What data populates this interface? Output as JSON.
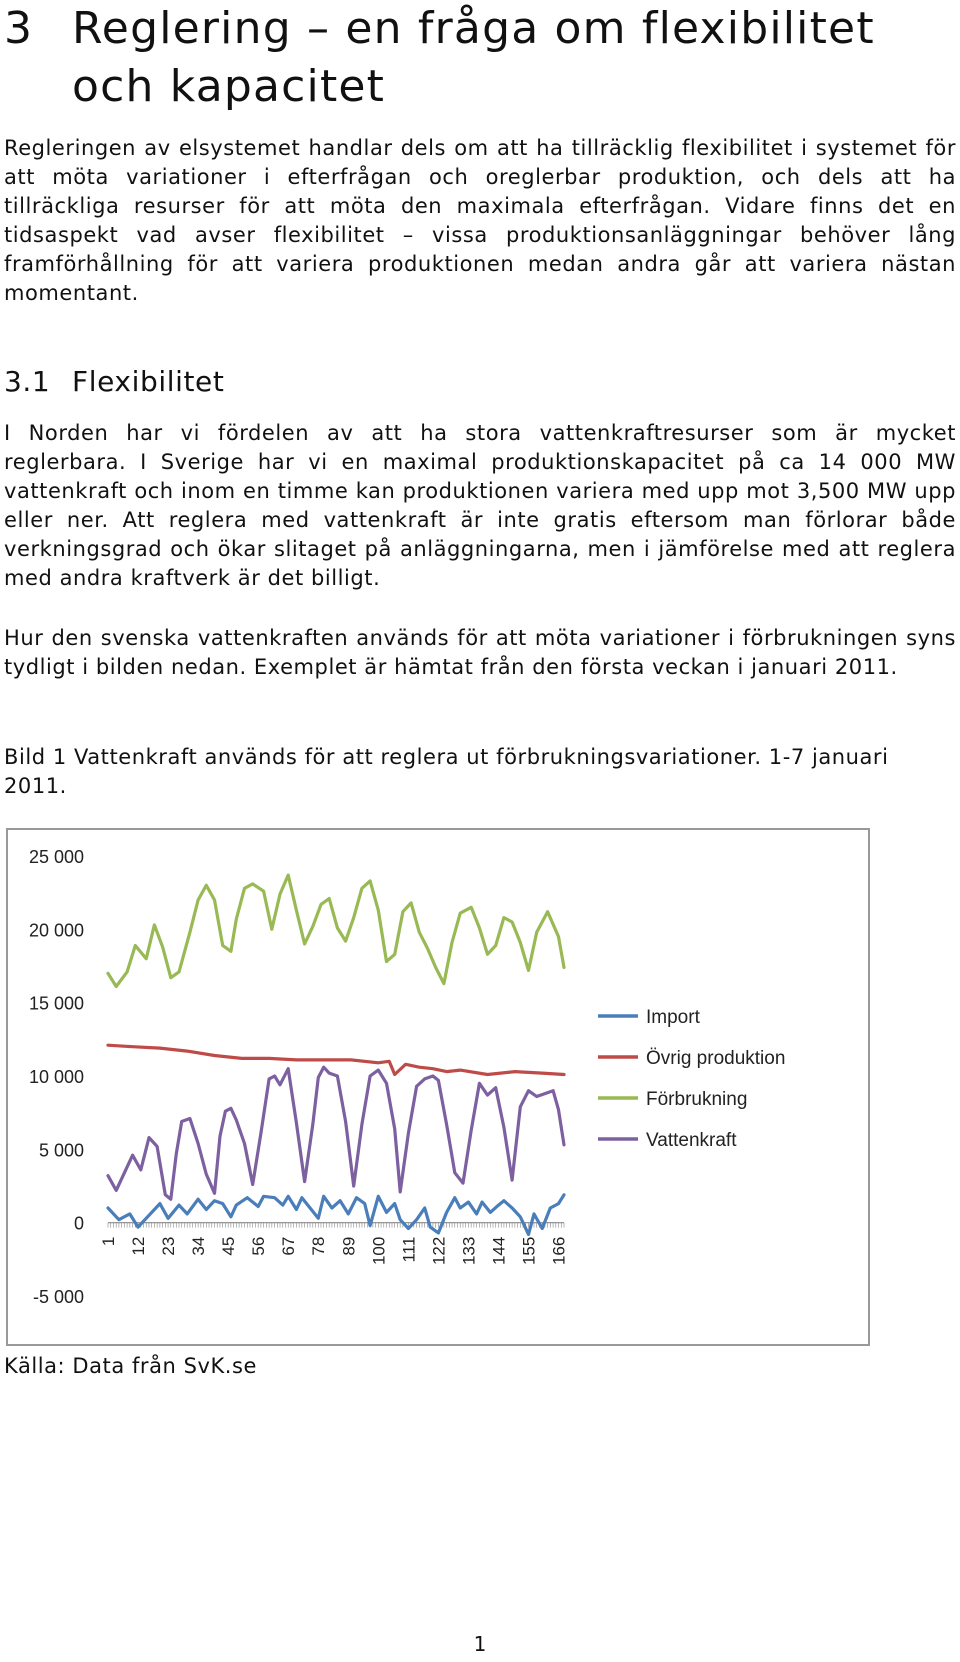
{
  "heading": {
    "number": "3",
    "title_line1": "Reglering – en fråga om flexibilitet",
    "title_line2": "och kapacitet"
  },
  "intro_paragraph": "Regleringen av elsystemet handlar dels om att ha tillräcklig flexibilitet i systemet för att möta variationer i efterfrågan och oreglerbar produktion, och dels att ha tillräckliga resurser för att möta den maximala efterfrågan. Vidare finns det en tidsaspekt vad avser flexibilitet – vissa produktionsanläggningar behöver lång framförhållning för att variera produktionen medan andra går att variera nästan momentant.",
  "section": {
    "number": "3.1",
    "title": "Flexibilitet"
  },
  "paragraph_1": "I Norden har vi fördelen av att ha stora vattenkraftresurser som är mycket reglerbara. I Sverige har vi en maximal produktionskapacitet på ca 14 000 MW vattenkraft och inom en timme kan produktionen variera med upp mot 3,500 MW upp eller ner. Att reglera med vattenkraft är inte gratis eftersom man förlorar både verkningsgrad och ökar slitaget på anläggningarna, men i jämförelse med att reglera med andra kraftverk är det billigt.",
  "paragraph_2": "Hur den svenska vattenkraften används för att möta variationer i förbrukningen syns tydligt i bilden nedan. Exemplet är hämtat från den första veckan i januari 2011.",
  "figure_caption": "Bild 1 Vattenkraft används för att reglera ut förbrukningsvariationer. 1-7 januari 2011.",
  "source": "Källa: Data från SvK.se",
  "page_number": "1",
  "chart_data": {
    "type": "line",
    "title": "",
    "xlabel": "",
    "ylabel": "",
    "ylim": [
      -5000,
      25000
    ],
    "yticks": [
      25000,
      20000,
      15000,
      10000,
      5000,
      0,
      -5000
    ],
    "ytick_labels": [
      "25 000",
      "20 000",
      "15 000",
      "10 000",
      "5 000",
      "0",
      "-5 000"
    ],
    "xlim": [
      1,
      168
    ],
    "xticks": [
      1,
      12,
      23,
      34,
      45,
      56,
      67,
      78,
      89,
      100,
      111,
      122,
      133,
      144,
      155,
      166
    ],
    "xtick_labels": [
      "1",
      "12",
      "23",
      "34",
      "45",
      "56",
      "67",
      "78",
      "89",
      "100",
      "111",
      "122",
      "133",
      "144",
      "155",
      "166"
    ],
    "grid": false,
    "legend": "right",
    "series": [
      {
        "name": "Import",
        "color": "#4a7ebb",
        "x": [
          1,
          5,
          9,
          12,
          16,
          20,
          23,
          27,
          30,
          34,
          37,
          40,
          43,
          46,
          48,
          52,
          56,
          58,
          62,
          65,
          67,
          70,
          72,
          75,
          78,
          80,
          83,
          86,
          89,
          92,
          95,
          97,
          100,
          103,
          106,
          108,
          111,
          114,
          117,
          119,
          122,
          125,
          128,
          130,
          133,
          136,
          138,
          141,
          144,
          146,
          149,
          152,
          155,
          157,
          160,
          163,
          166,
          168
        ],
        "y": [
          1000,
          200,
          600,
          -300,
          500,
          1300,
          300,
          1200,
          600,
          1600,
          900,
          1500,
          1300,
          400,
          1200,
          1700,
          1100,
          1800,
          1700,
          1200,
          1800,
          900,
          1700,
          1000,
          300,
          1800,
          1000,
          1500,
          600,
          1700,
          1300,
          -200,
          1800,
          700,
          1300,
          200,
          -400,
          200,
          1000,
          -300,
          -700,
          700,
          1700,
          1000,
          1400,
          600,
          1400,
          700,
          1200,
          1500,
          1000,
          400,
          -800,
          600,
          -400,
          1000,
          1300,
          1900
        ]
      },
      {
        "name": "Övrig produktion",
        "color": "#be4b48",
        "x": [
          1,
          10,
          20,
          30,
          40,
          50,
          60,
          70,
          80,
          90,
          100,
          104,
          106,
          110,
          115,
          120,
          125,
          130,
          140,
          150,
          160,
          168
        ],
        "y": [
          12100,
          12000,
          11900,
          11700,
          11400,
          11200,
          11200,
          11100,
          11100,
          11100,
          10900,
          11000,
          10100,
          10800,
          10600,
          10500,
          10300,
          10400,
          10100,
          10300,
          10200,
          10100
        ]
      },
      {
        "name": "Förbrukning",
        "color": "#98b954",
        "x": [
          1,
          4,
          8,
          11,
          15,
          18,
          21,
          24,
          27,
          31,
          34,
          37,
          40,
          43,
          46,
          48,
          51,
          54,
          58,
          61,
          64,
          67,
          70,
          73,
          76,
          79,
          82,
          85,
          88,
          91,
          94,
          97,
          100,
          103,
          106,
          109,
          112,
          115,
          118,
          121,
          124,
          127,
          130,
          134,
          137,
          140,
          143,
          146,
          149,
          152,
          155,
          158,
          162,
          166,
          168
        ],
        "y": [
          17000,
          16100,
          17100,
          18900,
          18000,
          20300,
          18800,
          16700,
          17100,
          19800,
          22000,
          23000,
          22000,
          18900,
          18500,
          20700,
          22800,
          23100,
          22600,
          20000,
          22400,
          23700,
          21300,
          19000,
          20200,
          21700,
          22100,
          20100,
          19200,
          20800,
          22800,
          23300,
          21300,
          17800,
          18300,
          21200,
          21800,
          19800,
          18700,
          17400,
          16300,
          19100,
          21100,
          21500,
          20100,
          18300,
          18900,
          20800,
          20500,
          19100,
          17200,
          19800,
          21200,
          19500,
          17400
        ]
      },
      {
        "name": "Vattenkraft",
        "color": "#7d60a0",
        "x": [
          1,
          4,
          7,
          10,
          13,
          16,
          19,
          22,
          24,
          26,
          28,
          31,
          34,
          37,
          40,
          42,
          44,
          46,
          48,
          51,
          54,
          57,
          60,
          62,
          64,
          67,
          70,
          73,
          76,
          78,
          80,
          82,
          85,
          88,
          91,
          94,
          97,
          100,
          103,
          106,
          108,
          111,
          114,
          117,
          120,
          122,
          125,
          128,
          131,
          134,
          137,
          140,
          143,
          146,
          149,
          152,
          155,
          158,
          161,
          164,
          166,
          168
        ],
        "y": [
          3200,
          2200,
          3400,
          4600,
          3600,
          5800,
          5200,
          1900,
          1600,
          4700,
          6900,
          7100,
          5400,
          3300,
          2000,
          5900,
          7600,
          7800,
          7000,
          5400,
          2600,
          6100,
          9800,
          10000,
          9400,
          10500,
          6800,
          2800,
          6700,
          9900,
          10600,
          10200,
          10000,
          6900,
          2500,
          6700,
          10000,
          10400,
          9500,
          6400,
          2100,
          6100,
          9300,
          9800,
          10000,
          9700,
          6700,
          3400,
          2700,
          6300,
          9500,
          8700,
          9200,
          6500,
          2900,
          7900,
          9000,
          8600,
          8800,
          9000,
          7700,
          5300
        ]
      }
    ]
  }
}
